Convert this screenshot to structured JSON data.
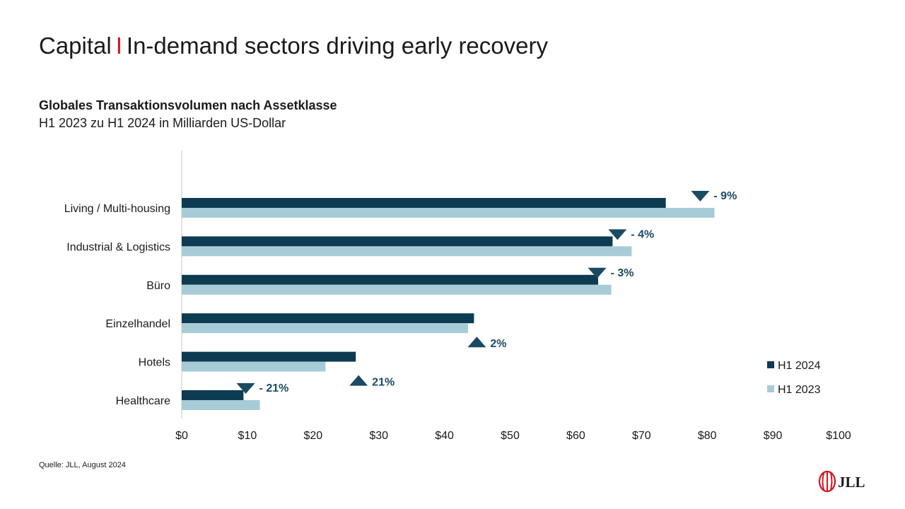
{
  "title": {
    "prefix": "Capital",
    "separator": "I",
    "main": "In-demand sectors driving early recovery"
  },
  "subtitle": "Globales Transaktionsvolumen nach Assetklasse",
  "subtitle2": "H1 2023 zu H1 2024 in Milliarden US-Dollar",
  "source": "Quelle: JLL, August 2024",
  "logo_text": "JLL",
  "colors": {
    "accent": "#d0141e",
    "h1_2024": "#0d3b52",
    "h1_2023": "#a8cbd8",
    "marker": "#1b4a63"
  },
  "chart_data": {
    "type": "bar",
    "orientation": "horizontal",
    "categories": [
      "Living / Multi-housing",
      "Industrial & Logistics",
      "Büro",
      "Einzelhandel",
      "Hotels",
      "Healthcare"
    ],
    "series": [
      {
        "name": "H1 2024",
        "values": [
          73.7,
          65.6,
          63.4,
          44.5,
          26.5,
          9.4
        ]
      },
      {
        "name": "H1 2023",
        "values": [
          81.1,
          68.5,
          65.4,
          43.6,
          21.9,
          11.9
        ]
      }
    ],
    "change_labels": [
      "- 9%",
      "- 4%",
      "- 3%",
      "2%",
      "21%",
      "- 21%"
    ],
    "change_direction": [
      "down",
      "down",
      "down",
      "up",
      "up",
      "down"
    ],
    "xlim": [
      0,
      100
    ],
    "xticks": [
      0,
      10,
      20,
      30,
      40,
      50,
      60,
      70,
      80,
      90,
      100
    ],
    "xtick_labels": [
      "$0",
      "$10",
      "$20",
      "$30",
      "$40",
      "$50",
      "$60",
      "$70",
      "$80",
      "$90",
      "$100"
    ],
    "legend": [
      "H1 2024",
      "H1 2023"
    ],
    "legend_position": "right",
    "grid": false
  }
}
